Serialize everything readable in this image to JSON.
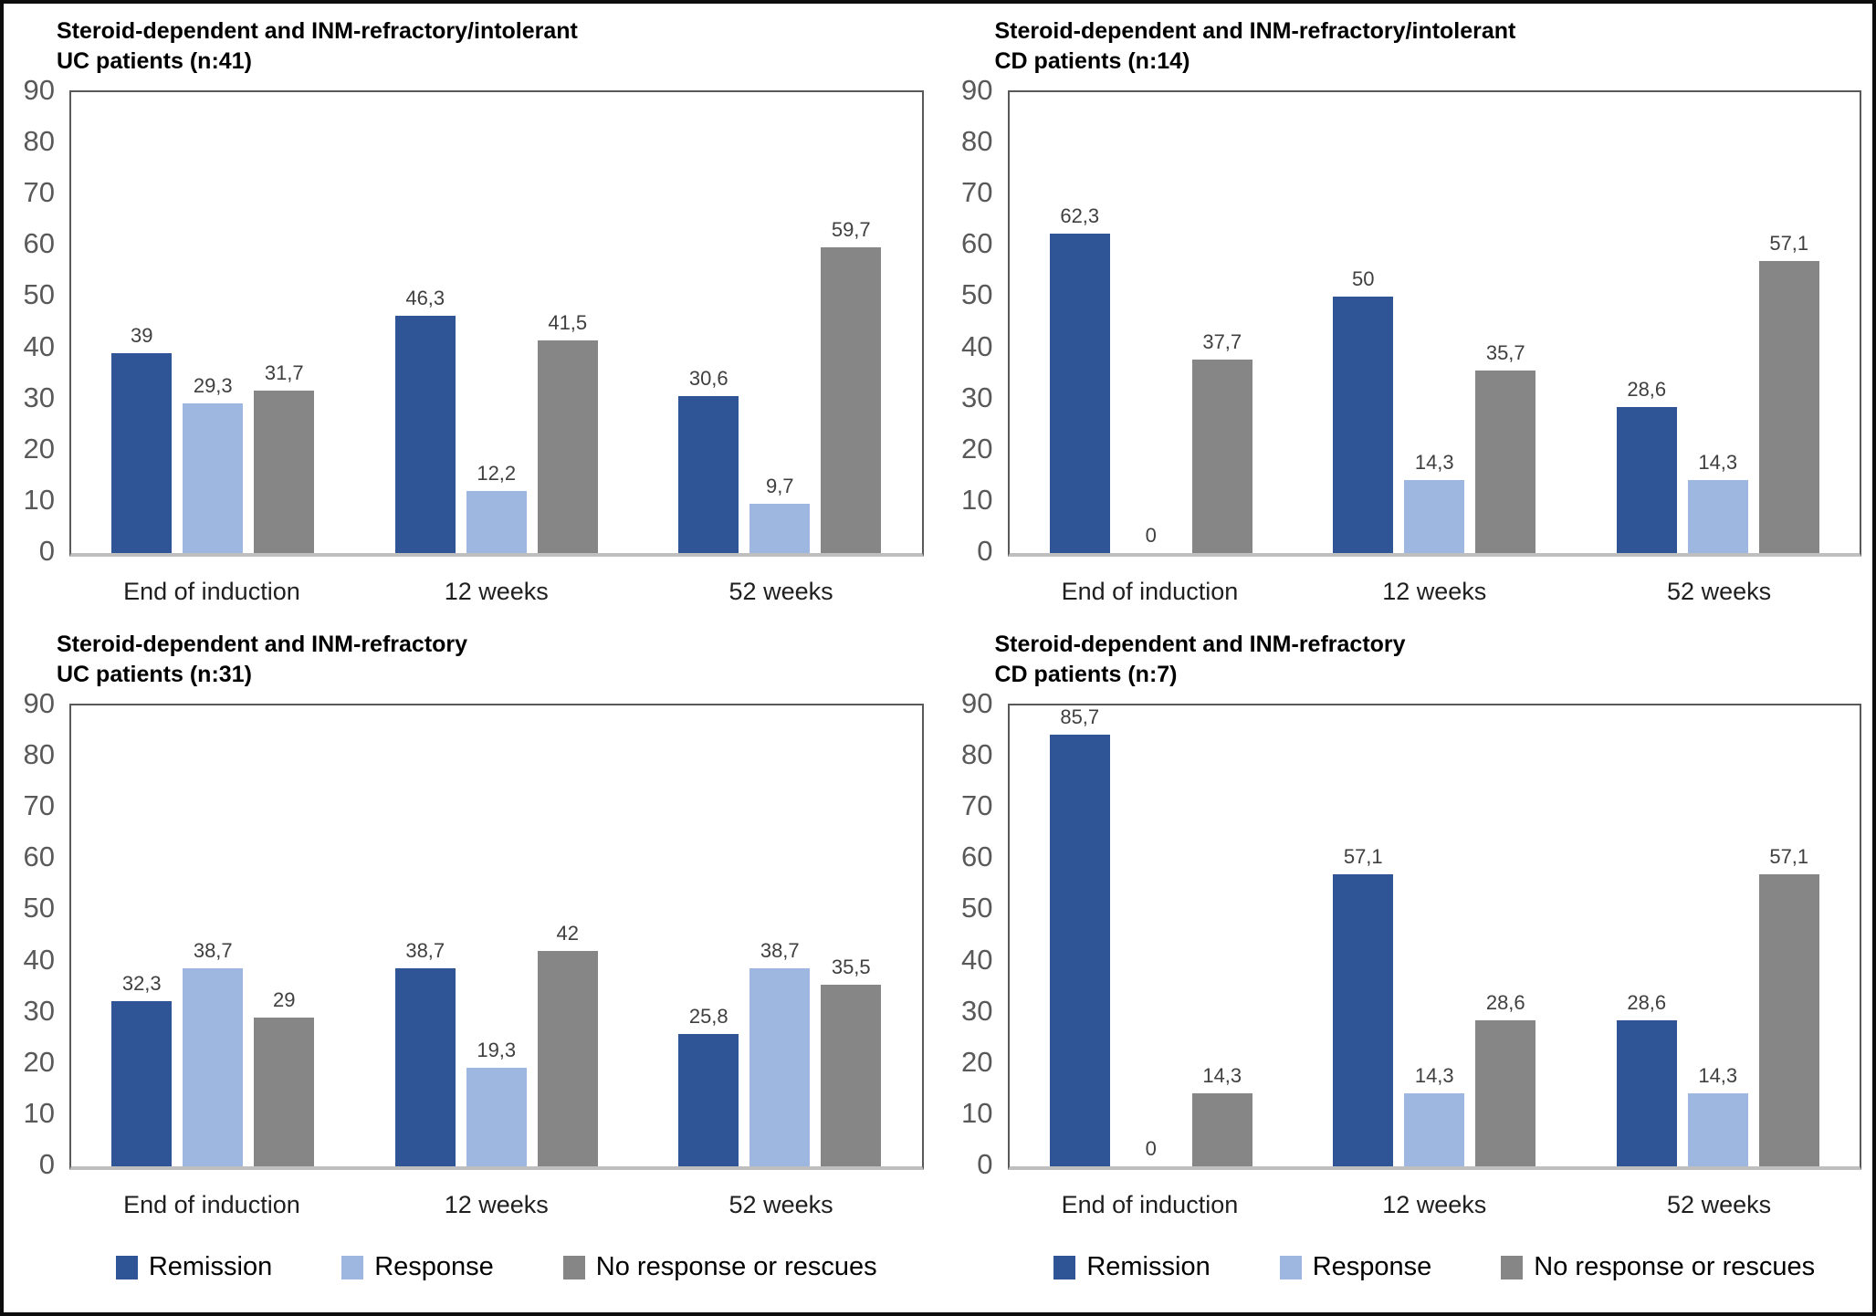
{
  "figure": {
    "y_ticks": [
      "90",
      "80",
      "70",
      "60",
      "50",
      "40",
      "30",
      "20",
      "10",
      "0"
    ],
    "y_max": 90,
    "categories": [
      "End of induction",
      "12 weeks",
      "52 weeks"
    ],
    "legend": [
      {
        "label": "Remission",
        "color": "#2F5597"
      },
      {
        "label": "Response",
        "color": "#9EB7E0"
      },
      {
        "label": "No response or rescues",
        "color": "#868686"
      }
    ],
    "colors": {
      "remission": "#2F5597",
      "response": "#9EB7E0",
      "no_response_or_rescues": "#868686",
      "plot_border": "#595959",
      "baseline": "#bfbfbf",
      "value_label": "#3f3f3f",
      "axis_text": "#595959",
      "outer_border": "#0d0d0d"
    }
  },
  "chart_data": [
    {
      "type": "bar",
      "position": "top-left",
      "title": "Steroid-dependent and INM-refractory/intolerant",
      "subtitle": "UC patients (n:41)",
      "categories": [
        "End of induction",
        "12 weeks",
        "52 weeks"
      ],
      "ylim": [
        0,
        90
      ],
      "grid": false,
      "legend_position": "bottom",
      "series": [
        {
          "name": "Remission",
          "color": "#2F5597",
          "values": [
            39,
            46.3,
            30.6
          ]
        },
        {
          "name": "Response",
          "color": "#9EB7E0",
          "values": [
            29.3,
            12.2,
            9.7
          ]
        },
        {
          "name": "No response or rescues",
          "color": "#868686",
          "values": [
            31.7,
            41.5,
            59.7
          ]
        }
      ]
    },
    {
      "type": "bar",
      "position": "top-right",
      "title": "Steroid-dependent and INM-refractory/intolerant",
      "subtitle": "CD patients (n:14)",
      "categories": [
        "End of induction",
        "12 weeks",
        "52 weeks"
      ],
      "ylim": [
        0,
        90
      ],
      "grid": false,
      "legend_position": "bottom",
      "series": [
        {
          "name": "Remission",
          "color": "#2F5597",
          "values": [
            62.3,
            50,
            28.6
          ]
        },
        {
          "name": "Response",
          "color": "#9EB7E0",
          "values": [
            0,
            14.3,
            14.3
          ]
        },
        {
          "name": "No response or rescues",
          "color": "#868686",
          "values": [
            37.7,
            35.7,
            57.1
          ]
        }
      ]
    },
    {
      "type": "bar",
      "position": "bottom-left",
      "title": "Steroid-dependent and INM-refractory",
      "subtitle": "UC patients (n:31)",
      "categories": [
        "End of induction",
        "12 weeks",
        "52 weeks"
      ],
      "ylim": [
        0,
        90
      ],
      "grid": false,
      "legend_position": "bottom",
      "series": [
        {
          "name": "Remission",
          "color": "#2F5597",
          "values": [
            32.3,
            38.7,
            25.8
          ]
        },
        {
          "name": "Response",
          "color": "#9EB7E0",
          "values": [
            38.7,
            19.3,
            38.7
          ]
        },
        {
          "name": "No response or rescues",
          "color": "#868686",
          "values": [
            29,
            42,
            35.5
          ]
        }
      ]
    },
    {
      "type": "bar",
      "position": "bottom-right",
      "title": "Steroid-dependent and INM-refractory",
      "subtitle": "CD patients (n:7)",
      "categories": [
        "End of induction",
        "12 weeks",
        "52 weeks"
      ],
      "ylim": [
        0,
        90
      ],
      "grid": false,
      "legend_position": "bottom",
      "series": [
        {
          "name": "Remission",
          "color": "#2F5597",
          "values": [
            85.7,
            57.1,
            28.6
          ]
        },
        {
          "name": "Response",
          "color": "#9EB7E0",
          "values": [
            0,
            14.3,
            14.3
          ]
        },
        {
          "name": "No response or rescues",
          "color": "#868686",
          "values": [
            14.3,
            28.6,
            57.1
          ]
        }
      ]
    }
  ]
}
